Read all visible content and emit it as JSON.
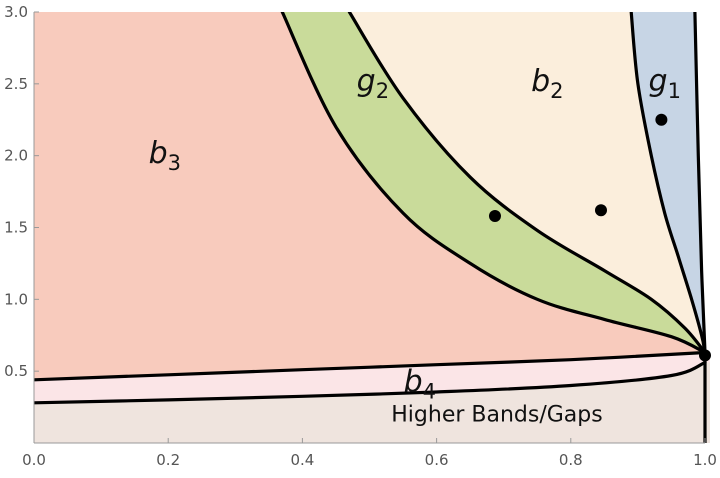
{
  "chart_data": {
    "type": "area",
    "title": "",
    "xlabel": "",
    "ylabel": "",
    "xlim": [
      0,
      1
    ],
    "ylim": [
      0,
      3
    ],
    "x_ticks": [
      "0.0",
      "0.2",
      "0.4",
      "0.6",
      "0.8",
      "1.0"
    ],
    "y_ticks": [
      "0.5",
      "1.0",
      "1.5",
      "2.0",
      "2.5",
      "3.0"
    ],
    "grid": false,
    "colors": {
      "b3": "#f8cbbd",
      "g2": "#c9db9a",
      "b2": "#fbeedc",
      "g1": "#c7d5e5",
      "b4": "#fbe5e7",
      "higher": "#efe4de"
    },
    "boundaries": {
      "g2_left": [
        [
          0.37,
          3.0
        ],
        [
          0.45,
          2.2
        ],
        [
          0.55,
          1.6
        ],
        [
          0.65,
          1.25
        ],
        [
          0.75,
          1.0
        ],
        [
          0.85,
          0.86
        ],
        [
          0.95,
          0.74
        ],
        [
          1.0,
          0.63
        ]
      ],
      "g2_right": [
        [
          0.47,
          3.0
        ],
        [
          0.55,
          2.4
        ],
        [
          0.65,
          1.85
        ],
        [
          0.75,
          1.48
        ],
        [
          0.85,
          1.2
        ],
        [
          0.92,
          1.0
        ],
        [
          0.97,
          0.8
        ],
        [
          1.0,
          0.63
        ]
      ],
      "g1_left": [
        [
          0.89,
          3.0
        ],
        [
          0.9,
          2.5
        ],
        [
          0.92,
          2.0
        ],
        [
          0.94,
          1.6
        ],
        [
          0.96,
          1.3
        ],
        [
          0.98,
          1.0
        ],
        [
          0.995,
          0.75
        ],
        [
          1.0,
          0.63
        ]
      ],
      "g1_right": [
        [
          0.985,
          3.0
        ],
        [
          0.99,
          2.0
        ],
        [
          0.995,
          1.2
        ],
        [
          1.0,
          0.63
        ]
      ],
      "b4_top": [
        [
          0.0,
          0.44
        ],
        [
          0.2,
          0.475
        ],
        [
          0.4,
          0.51
        ],
        [
          0.6,
          0.545
        ],
        [
          0.8,
          0.58
        ],
        [
          1.0,
          0.63
        ]
      ],
      "b4_bottom": [
        [
          0.0,
          0.28
        ],
        [
          0.2,
          0.3
        ],
        [
          0.4,
          0.325
        ],
        [
          0.6,
          0.355
        ],
        [
          0.8,
          0.4
        ],
        [
          0.95,
          0.47
        ],
        [
          1.0,
          0.56
        ]
      ],
      "vertical_line": [
        [
          1.0,
          0.0
        ],
        [
          1.0,
          0.63
        ]
      ]
    },
    "points": [
      {
        "x": 0.687,
        "y": 1.58
      },
      {
        "x": 0.845,
        "y": 1.62
      },
      {
        "x": 0.935,
        "y": 2.25
      },
      {
        "x": 1.0,
        "y": 0.61
      }
    ],
    "region_labels": [
      {
        "id": "b3",
        "base": "b",
        "sub": "3",
        "x": 0.195,
        "y": 1.95
      },
      {
        "id": "g2",
        "base": "g",
        "sub": "2",
        "x": 0.505,
        "y": 2.45
      },
      {
        "id": "b2",
        "base": "b",
        "sub": "2",
        "x": 0.765,
        "y": 2.45
      },
      {
        "id": "g1",
        "base": "g",
        "sub": "1",
        "x": 0.94,
        "y": 2.45
      },
      {
        "id": "b4",
        "base": "b",
        "sub": "4",
        "x": 0.575,
        "y": 0.36
      }
    ],
    "annotations": [
      {
        "text": "Higher Bands/Gaps",
        "x": 0.69,
        "y": 0.15
      }
    ]
  }
}
